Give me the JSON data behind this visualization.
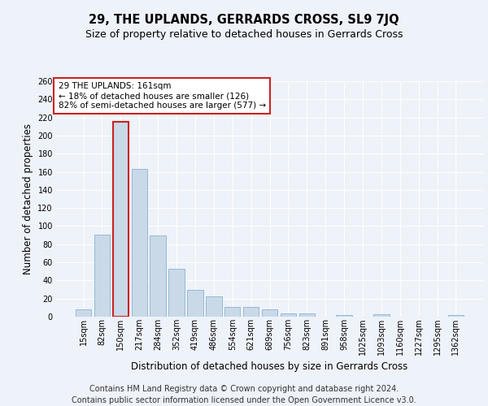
{
  "title": "29, THE UPLANDS, GERRARDS CROSS, SL9 7JQ",
  "subtitle": "Size of property relative to detached houses in Gerrards Cross",
  "xlabel": "Distribution of detached houses by size in Gerrards Cross",
  "ylabel": "Number of detached properties",
  "categories": [
    "15sqm",
    "82sqm",
    "150sqm",
    "217sqm",
    "284sqm",
    "352sqm",
    "419sqm",
    "486sqm",
    "554sqm",
    "621sqm",
    "689sqm",
    "756sqm",
    "823sqm",
    "891sqm",
    "958sqm",
    "1025sqm",
    "1093sqm",
    "1160sqm",
    "1227sqm",
    "1295sqm",
    "1362sqm"
  ],
  "values": [
    8,
    91,
    215,
    163,
    90,
    53,
    30,
    22,
    11,
    11,
    8,
    4,
    4,
    0,
    2,
    0,
    3,
    0,
    0,
    0,
    2
  ],
  "highlight_bar_index": 2,
  "bar_color": "#c9d9e8",
  "bar_edge_color": "#7aaac8",
  "highlight_bar_edge_color": "#cc2222",
  "annotation_box_text": "29 THE UPLANDS: 161sqm\n← 18% of detached houses are smaller (126)\n82% of semi-detached houses are larger (577) →",
  "ylim": [
    0,
    260
  ],
  "yticks": [
    0,
    20,
    40,
    60,
    80,
    100,
    120,
    140,
    160,
    180,
    200,
    220,
    240,
    260
  ],
  "footer_line1": "Contains HM Land Registry data © Crown copyright and database right 2024.",
  "footer_line2": "Contains public sector information licensed under the Open Government Licence v3.0.",
  "background_color": "#eef2f9",
  "grid_color": "#ffffff",
  "title_fontsize": 10.5,
  "subtitle_fontsize": 9,
  "axis_label_fontsize": 8.5,
  "tick_fontsize": 7,
  "annotation_fontsize": 7.5,
  "footer_fontsize": 7
}
